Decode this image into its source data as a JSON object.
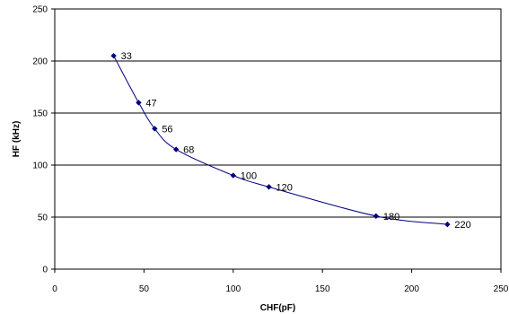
{
  "chart_data": {
    "type": "line",
    "title": "",
    "xlabel": "CHF(pF)",
    "ylabel": "HF (kHz)",
    "xlim": [
      0,
      250
    ],
    "ylim": [
      0,
      250
    ],
    "xticks": [
      0,
      50,
      100,
      150,
      200,
      250
    ],
    "yticks": [
      0,
      50,
      100,
      150,
      200,
      250
    ],
    "grid": "horizontal",
    "legend": "none",
    "series": [
      {
        "color": "#000080",
        "points": [
          {
            "x": 33,
            "y": 205,
            "label": "33"
          },
          {
            "x": 47,
            "y": 160,
            "label": "47"
          },
          {
            "x": 56,
            "y": 135,
            "label": "56"
          },
          {
            "x": 68,
            "y": 115,
            "label": "68"
          },
          {
            "x": 100,
            "y": 90,
            "label": "100"
          },
          {
            "x": 120,
            "y": 79,
            "label": "120"
          },
          {
            "x": 180,
            "y": 51,
            "label": "180"
          },
          {
            "x": 220,
            "y": 43,
            "label": "220"
          }
        ]
      }
    ]
  }
}
